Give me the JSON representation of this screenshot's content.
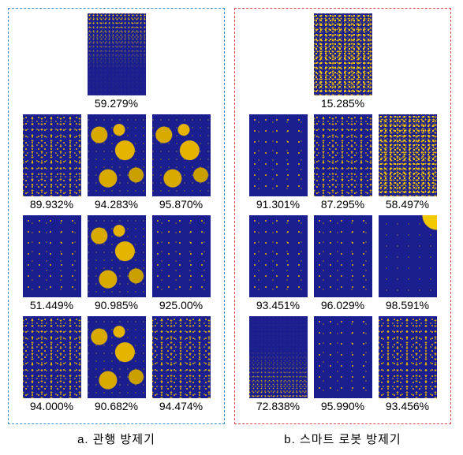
{
  "panel_a": {
    "border_color": "#3a8fd6",
    "caption": "a. 관행 방제기",
    "rows": [
      [
        {
          "pct": "59.279%",
          "style": "grad-top"
        }
      ],
      [
        {
          "pct": "89.932%",
          "style": "mid"
        },
        {
          "pct": "94.283%",
          "style": "blob"
        },
        {
          "pct": "95.870%",
          "style": "blob"
        }
      ],
      [
        {
          "pct": "51.449%",
          "style": "low"
        },
        {
          "pct": "90.985%",
          "style": "blob"
        },
        {
          "pct": "925.00%",
          "style": "low"
        }
      ],
      [
        {
          "pct": "94.000%",
          "style": "mid"
        },
        {
          "pct": "90.682%",
          "style": "blob"
        },
        {
          "pct": "94.474%",
          "style": "mid"
        }
      ]
    ]
  },
  "panel_b": {
    "border_color": "#d64a4a",
    "caption": "b. 스마트 로봇 방제기",
    "rows": [
      [
        {
          "pct": "15.285%",
          "style": "hi"
        }
      ],
      [
        {
          "pct": "91.301%",
          "style": "low"
        },
        {
          "pct": "87.295%",
          "style": "mid"
        },
        {
          "pct": "58.497%",
          "style": "hi"
        }
      ],
      [
        {
          "pct": "93.451%",
          "style": "low"
        },
        {
          "pct": "96.029%",
          "style": "low"
        },
        {
          "pct": "98.591%",
          "style": "corner"
        }
      ],
      [
        {
          "pct": "72.838%",
          "style": "grad-bottom"
        },
        {
          "pct": "95.990%",
          "style": "low"
        },
        {
          "pct": "93.456%",
          "style": "mid"
        }
      ]
    ]
  }
}
